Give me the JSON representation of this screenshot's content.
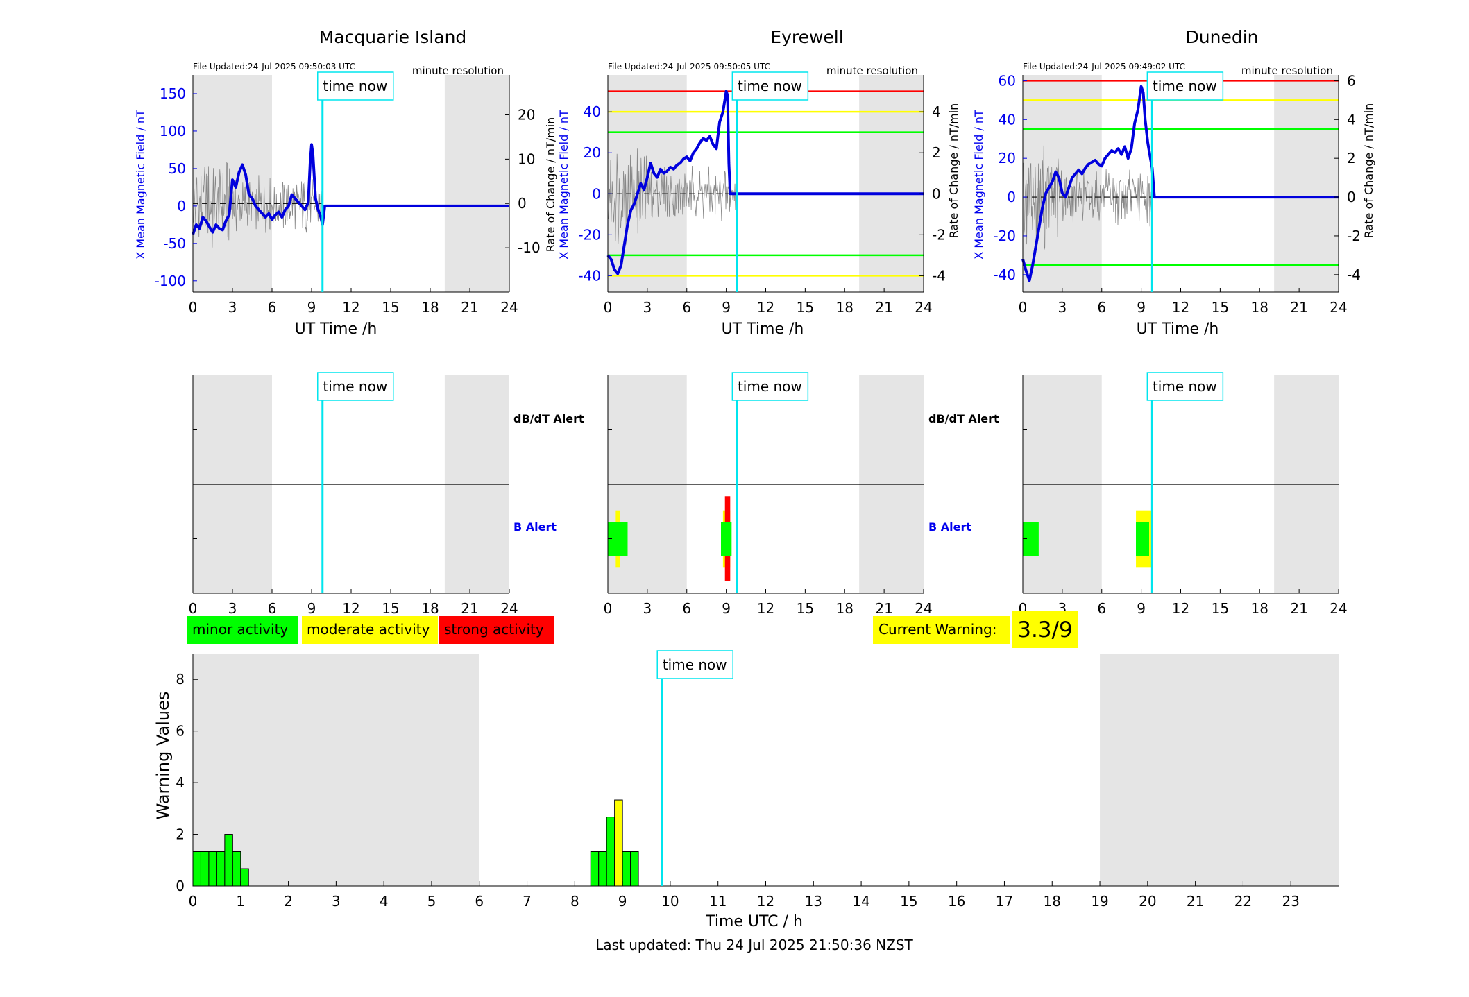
{
  "colors": {
    "night_shade": "#e5e5e5",
    "time_now": "#00e5ee",
    "field_line": "#0000dd",
    "rate_line": "#888888",
    "minor": "#00ff00",
    "moderate": "#ffff00",
    "strong": "#ff0000",
    "blue_text": "#0000ee"
  },
  "time_now_label": "time now",
  "top_panels": [
    {
      "title": "Macquarie Island",
      "file_updated": "File Updated:24-Jul-2025 09:50:03 UTC",
      "resolution": "minute resolution",
      "ylabel_left": "X Mean Magnetic Field / nT",
      "ylabel_right": "",
      "xlabel": "UT Time /h"
    },
    {
      "title": "Eyrewell",
      "file_updated": "File Updated:24-Jul-2025 09:50:05 UTC",
      "resolution": "minute resolution",
      "ylabel_left": "X Mean Magnetic Field / nT",
      "ylabel_right": "Rate of Change / nT/min",
      "xlabel": "UT Time /h"
    },
    {
      "title": "Dunedin",
      "file_updated": "File Updated:24-Jul-2025 09:49:02 UTC",
      "resolution": "minute resolution",
      "ylabel_left": "X Mean Magnetic Field / nT",
      "ylabel_right": "Rate of Change / nT/min",
      "xlabel": "UT Time /h"
    }
  ],
  "shared_rate_label": "Rate of Change / nT/min",
  "alert_labels": {
    "dbdt": "dB/dT Alert",
    "b": "B Alert"
  },
  "legend": {
    "minor": "minor activity",
    "moderate": "moderate activity",
    "strong": "strong activity"
  },
  "current_warning": {
    "label": "Current Warning:",
    "value": "3.3/9"
  },
  "footer": "Last updated: Thu 24 Jul 2025 21:50:36 NZST",
  "chart_data": [
    {
      "type": "line",
      "title": "Macquarie Island",
      "xlabel": "UT Time /h",
      "ylabel": "X Mean Magnetic Field / nT",
      "xlim": [
        0,
        24
      ],
      "ylim": [
        -115,
        175
      ],
      "ylim_right": [
        -20,
        29
      ],
      "xticks": [
        0,
        3,
        6,
        9,
        12,
        15,
        18,
        21,
        24
      ],
      "yticks": [
        -100,
        -50,
        0,
        50,
        100,
        150
      ],
      "yticks_right": [
        -10,
        0,
        10,
        20
      ],
      "night": [
        [
          0,
          6
        ],
        [
          19.1,
          24
        ]
      ],
      "time_now": 9.83,
      "thresholds": [],
      "series": [
        {
          "x": [
            0,
            0.25,
            0.5,
            0.75,
            1,
            1.25,
            1.5,
            1.75,
            2,
            2.25,
            2.5,
            2.75,
            3,
            3.25,
            3.5,
            3.75,
            4,
            4.25,
            4.5,
            4.75,
            5,
            5.25,
            5.5,
            5.75,
            6,
            6.25,
            6.5,
            6.75,
            7,
            7.25,
            7.5,
            7.75,
            8,
            8.25,
            8.5,
            8.75,
            8.9,
            9,
            9.1,
            9.3,
            9.5,
            9.7,
            9.83,
            10,
            24
          ],
          "y": [
            -38,
            -25,
            -30,
            -15,
            -20,
            -28,
            -35,
            -25,
            -30,
            -32,
            -20,
            -12,
            35,
            25,
            45,
            55,
            42,
            15,
            10,
            0,
            -5,
            -10,
            -15,
            -10,
            -18,
            -12,
            -8,
            -15,
            -5,
            0,
            15,
            10,
            5,
            0,
            -5,
            5,
            60,
            82,
            70,
            10,
            -5,
            -15,
            -25,
            0,
            0
          ]
        }
      ]
    },
    {
      "type": "line",
      "title": "Eyrewell",
      "xlabel": "UT Time /h",
      "ylabel": "X Mean Magnetic Field / nT",
      "xlim": [
        0,
        24
      ],
      "ylim": [
        -48,
        58
      ],
      "ylim_right": [
        -4.8,
        5.8
      ],
      "xticks": [
        0,
        3,
        6,
        9,
        12,
        15,
        18,
        21,
        24
      ],
      "yticks": [
        -40,
        -20,
        0,
        20,
        40
      ],
      "yticks_right": [
        -4,
        -2,
        0,
        2,
        4
      ],
      "night": [
        [
          0,
          6
        ],
        [
          19.1,
          24
        ]
      ],
      "time_now": 9.83,
      "thresholds": [
        {
          "value": 50,
          "color": "#ff0000"
        },
        {
          "value": 40,
          "color": "#ffff00"
        },
        {
          "value": 30,
          "color": "#00ff00"
        },
        {
          "value": -30,
          "color": "#00ff00"
        },
        {
          "value": -40,
          "color": "#ffff00"
        }
      ],
      "series": [
        {
          "x": [
            0,
            0.25,
            0.5,
            0.75,
            1,
            1.25,
            1.5,
            1.75,
            2,
            2.25,
            2.5,
            2.75,
            3,
            3.25,
            3.5,
            3.75,
            4,
            4.25,
            4.5,
            4.75,
            5,
            5.25,
            5.5,
            5.75,
            6,
            6.25,
            6.5,
            6.75,
            7,
            7.25,
            7.5,
            7.75,
            8,
            8.25,
            8.5,
            8.75,
            9,
            9.1,
            9.2,
            9.3,
            24
          ],
          "y": [
            -30,
            -32,
            -37,
            -39,
            -35,
            -25,
            -15,
            -8,
            -5,
            0,
            5,
            2,
            8,
            15,
            10,
            8,
            12,
            10,
            11,
            13,
            12,
            14,
            15,
            17,
            18,
            16,
            20,
            22,
            25,
            27,
            26,
            28,
            24,
            22,
            35,
            40,
            50,
            48,
            15,
            0,
            0
          ]
        }
      ]
    },
    {
      "type": "line",
      "title": "Dunedin",
      "xlabel": "UT Time /h",
      "ylabel": "X Mean Magnetic Field / nT",
      "xlim": [
        0,
        24
      ],
      "ylim": [
        -49,
        63
      ],
      "ylim_right": [
        -4.9,
        6.3
      ],
      "xticks": [
        0,
        3,
        6,
        9,
        12,
        15,
        18,
        21,
        24
      ],
      "yticks": [
        -40,
        -20,
        0,
        20,
        40,
        60
      ],
      "yticks_right": [
        -4,
        -2,
        0,
        2,
        4,
        6
      ],
      "night": [
        [
          0,
          6
        ],
        [
          19.1,
          24
        ]
      ],
      "time_now": 9.83,
      "thresholds": [
        {
          "value": 60,
          "color": "#ff0000"
        },
        {
          "value": 50,
          "color": "#ffff00"
        },
        {
          "value": 35,
          "color": "#00ff00"
        },
        {
          "value": -35,
          "color": "#00ff00"
        }
      ],
      "series": [
        {
          "x": [
            0,
            0.25,
            0.5,
            0.75,
            1,
            1.25,
            1.5,
            1.75,
            2,
            2.25,
            2.5,
            2.75,
            3,
            3.25,
            3.5,
            3.75,
            4,
            4.25,
            4.5,
            4.75,
            5,
            5.25,
            5.5,
            5.75,
            6,
            6.25,
            6.5,
            6.75,
            7,
            7.25,
            7.5,
            7.75,
            8,
            8.25,
            8.5,
            8.75,
            9,
            9.15,
            9.3,
            9.5,
            9.7,
            9.83,
            10,
            24
          ],
          "y": [
            -32,
            -38,
            -43,
            -35,
            -25,
            -15,
            -5,
            2,
            5,
            8,
            13,
            10,
            2,
            0,
            5,
            10,
            12,
            14,
            12,
            15,
            17,
            18,
            19,
            17,
            16,
            20,
            22,
            24,
            23,
            25,
            22,
            26,
            20,
            25,
            38,
            45,
            57,
            54,
            40,
            28,
            20,
            15,
            0,
            0
          ]
        }
      ]
    },
    {
      "type": "bar",
      "title": "",
      "xlabel": "Time UTC / h",
      "ylabel": "Warning Values",
      "xlim": [
        0,
        24
      ],
      "ylim": [
        0,
        9
      ],
      "xticks": [
        0,
        1,
        2,
        3,
        4,
        5,
        6,
        7,
        8,
        9,
        10,
        11,
        12,
        13,
        14,
        15,
        16,
        17,
        18,
        19,
        20,
        21,
        22,
        23
      ],
      "yticks": [
        0,
        2,
        4,
        6,
        8
      ],
      "night": [
        [
          0,
          6
        ],
        [
          19,
          24
        ]
      ],
      "time_now": 9.83,
      "bar_width_h": 0.1667,
      "bars": [
        {
          "x": 0,
          "value": 1.33,
          "level": "minor"
        },
        {
          "x": 0.1667,
          "value": 1.33,
          "level": "minor"
        },
        {
          "x": 0.3333,
          "value": 1.33,
          "level": "minor"
        },
        {
          "x": 0.5,
          "value": 1.33,
          "level": "minor"
        },
        {
          "x": 0.6667,
          "value": 2.0,
          "level": "minor"
        },
        {
          "x": 0.8333,
          "value": 1.33,
          "level": "minor"
        },
        {
          "x": 1.0,
          "value": 0.67,
          "level": "minor"
        },
        {
          "x": 8.3333,
          "value": 1.33,
          "level": "minor"
        },
        {
          "x": 8.5,
          "value": 1.33,
          "level": "minor"
        },
        {
          "x": 8.6667,
          "value": 2.67,
          "level": "minor"
        },
        {
          "x": 8.8333,
          "value": 3.33,
          "level": "moderate"
        },
        {
          "x": 9.0,
          "value": 1.33,
          "level": "minor"
        },
        {
          "x": 9.1667,
          "value": 1.33,
          "level": "minor"
        }
      ]
    }
  ],
  "alert_data": [
    {
      "dbdt": [],
      "b": []
    },
    {
      "dbdt": [],
      "b": [
        {
          "start": 0,
          "end": 1.5,
          "level": "minor",
          "half": 0.6
        },
        {
          "start": 0.6,
          "end": 0.9,
          "level": "moderate",
          "half": 1.0
        },
        {
          "start": 8.6,
          "end": 9.4,
          "level": "minor",
          "half": 0.6
        },
        {
          "start": 8.75,
          "end": 9.3,
          "level": "moderate",
          "half": 1.0
        },
        {
          "start": 8.9,
          "end": 9.3,
          "level": "strong",
          "half": 1.5
        }
      ]
    },
    {
      "dbdt": [],
      "b": [
        {
          "start": 0,
          "end": 1.2,
          "level": "minor",
          "half": 0.6
        },
        {
          "start": 8.6,
          "end": 9.8,
          "level": "moderate",
          "half": 1.0
        },
        {
          "start": 8.6,
          "end": 9.6,
          "level": "minor",
          "half": 0.6
        }
      ]
    }
  ]
}
